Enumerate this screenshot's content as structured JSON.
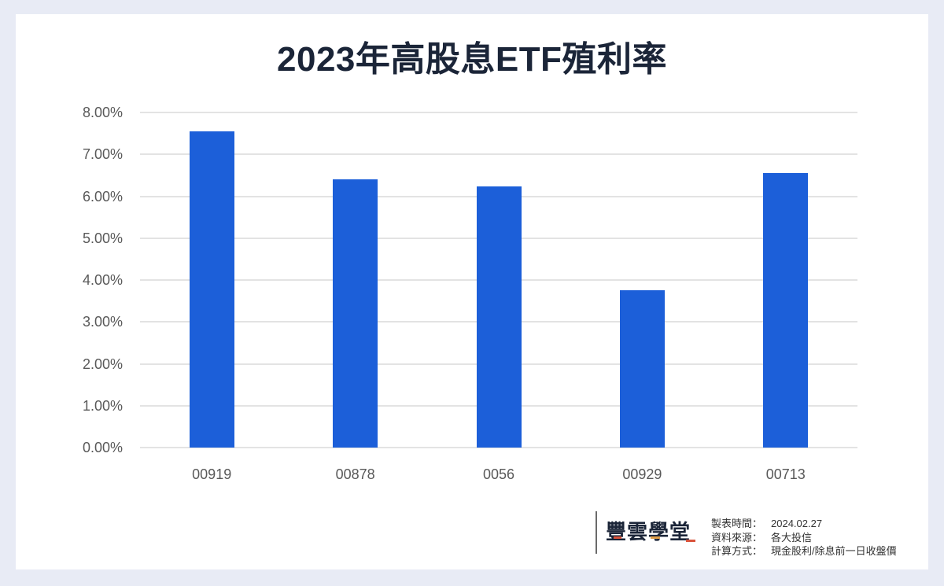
{
  "chart_data": {
    "type": "bar",
    "title": "2023年高股息ETF殖利率",
    "xlabel": "",
    "ylabel": "",
    "categories": [
      "00919",
      "00878",
      "0056",
      "00929",
      "00713"
    ],
    "values": [
      7.55,
      6.4,
      6.23,
      3.76,
      6.55
    ],
    "unit": "%",
    "ylim": [
      0,
      8
    ],
    "yticks": [
      "0.00%",
      "1.00%",
      "2.00%",
      "3.00%",
      "4.00%",
      "5.00%",
      "6.00%",
      "7.00%",
      "8.00%"
    ],
    "grid": true,
    "legend": "none",
    "bar_color": "#1c5fd9"
  },
  "footer": {
    "logo_text": "豐雲學堂",
    "rows": [
      {
        "label": "製表時間：",
        "value": "2024.02.27"
      },
      {
        "label": "資料來源：",
        "value": "各大投信"
      },
      {
        "label": "計算方式：",
        "value": "現金股利/除息前一日收盤價"
      }
    ]
  },
  "colors": {
    "background": "#e8ebf5",
    "card": "#ffffff",
    "title": "#1b2538",
    "bar": "#1c5fd9",
    "gridline": "#e3e3e3",
    "tick_text": "#595959",
    "logo_accent": "#d9533b"
  }
}
